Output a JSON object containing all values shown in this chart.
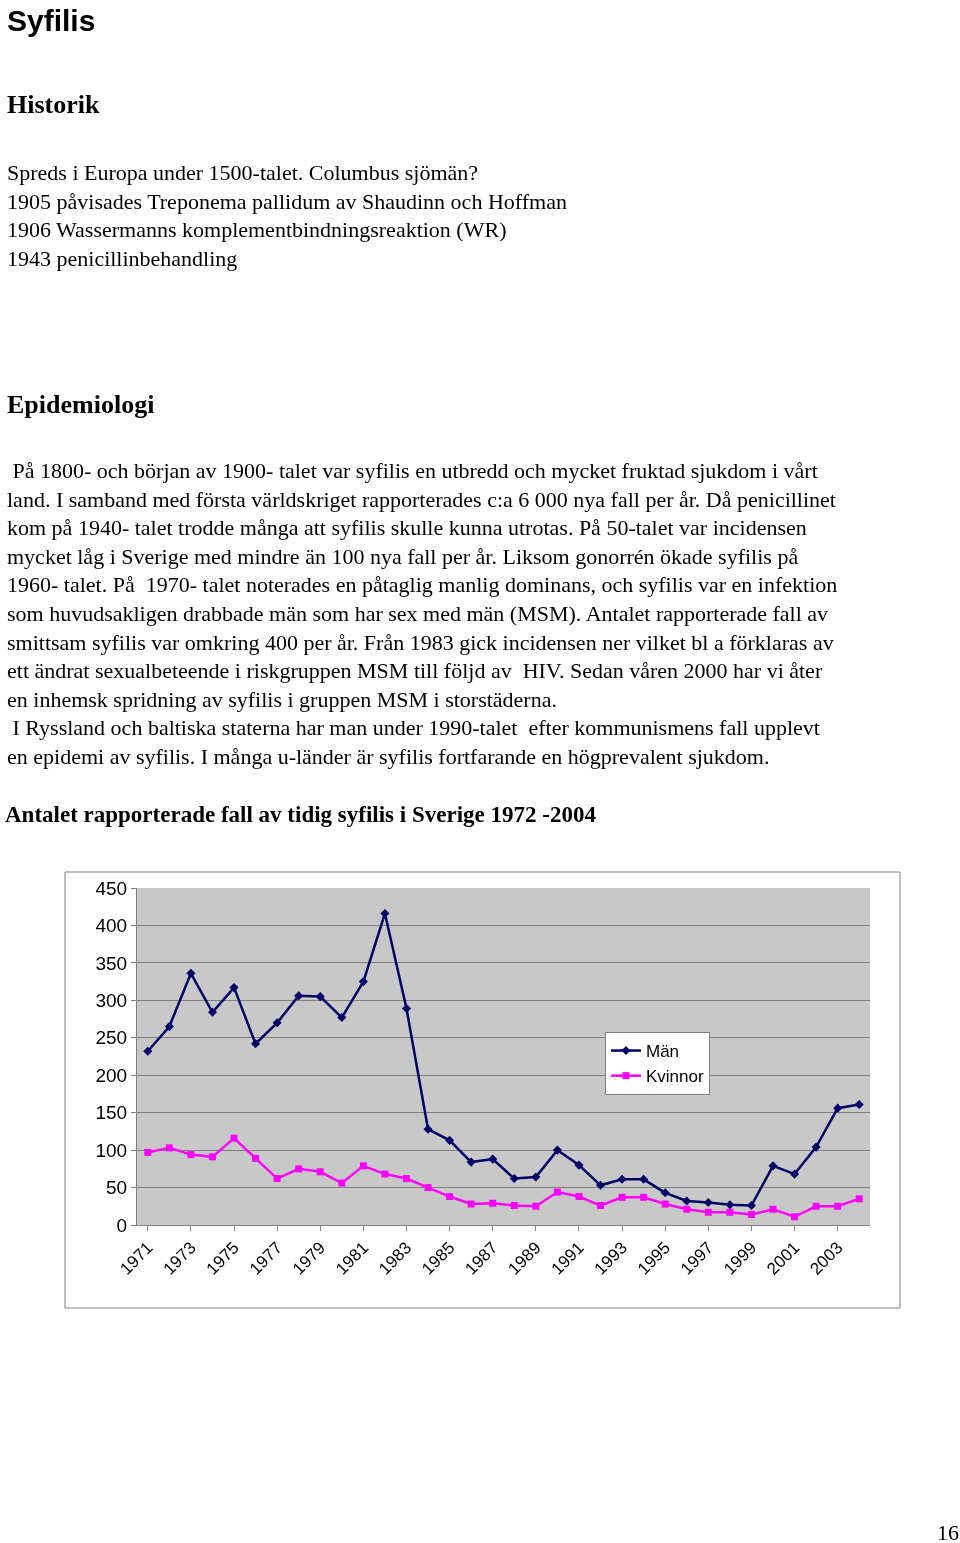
{
  "chart_data": {
    "type": "line",
    "title": "Antalet rapporterade fall av tidig syfilis i Sverige 1972 -2004",
    "annotations": [
      "Syfilis",
      "Historik",
      "Spreds i Europa under 1500-talet. Columbus sjömän?\n1905 påvisades Treponema pallidum av Shaudinn och Hoffman\n1906 Wassermanns komplementbindningsreaktion (WR)\n1943 penicillinbehandling",
      "Epidemiologi",
      " På 1800- och början av 1900- talet var syfilis en utbredd och mycket fruktad sjukdom i vårt\nland. I samband med första världskriget rapporterades c:a 6 000 nya fall per år. Då penicillinet\nkom på 1940- talet trodde många att syfilis skulle kunna utrotas. På 50-talet var incidensen\nmycket låg i Sverige med mindre än 100 nya fall per år. Liksom gonorrén ökade syfilis på\n1960- talet. På  1970- talet noterades en påtaglig manlig dominans, och syfilis var en infektion\nsom huvudsakligen drabbade män som har sex med män (MSM). Antalet rapporterade fall av\nsmittsam syfilis var omkring 400 per år. Från 1983 gick incidensen ner vilket bl a förklaras av\nett ändrat sexualbeteende i riskgruppen MSM till följd av  HIV. Sedan våren 2000 har vi åter\nen inhemsk spridning av syfilis i gruppen MSM i storstäderna.\n I Ryssland och baltiska staterna har man under 1990-talet  efter kommunismens fall upplevt\nen epidemi av syfilis. I många u-länder är syfilis fortfarande en högprevalent sjukdom.",
      "16"
    ],
    "categories": [
      "1971",
      null,
      "1973",
      null,
      "1975",
      null,
      "1977",
      null,
      "1979",
      null,
      "1981",
      null,
      "1983",
      null,
      "1985",
      null,
      "1987",
      null,
      "1989",
      null,
      "1991",
      null,
      "1993",
      null,
      "1995",
      null,
      "1997",
      null,
      "1999",
      null,
      "2001",
      null,
      "2003",
      null
    ],
    "series": [
      {
        "name": "Män",
        "color": "#000066",
        "marker": "diamond",
        "values": [
          232,
          265,
          336,
          284,
          317,
          242,
          270,
          306,
          305,
          277,
          325,
          416,
          289,
          128,
          113,
          84,
          88,
          62,
          64,
          100,
          80,
          53,
          61,
          61,
          43,
          32,
          30,
          27,
          26,
          79,
          68,
          104,
          156,
          161
        ]
      },
      {
        "name": "Kvinnor",
        "color": "#ff00ff",
        "marker": "square",
        "values": [
          97,
          103,
          94,
          91,
          116,
          89,
          62,
          75,
          71,
          56,
          79,
          68,
          62,
          50,
          38,
          28,
          29,
          26,
          25,
          44,
          38,
          26,
          37,
          37,
          28,
          21,
          17,
          17,
          14,
          21,
          11,
          25,
          25,
          35
        ]
      }
    ],
    "ylim": [
      0,
      450
    ],
    "yticks": [
      0,
      50,
      100,
      150,
      200,
      250,
      300,
      350,
      400,
      450
    ],
    "grid": "y",
    "legend": "right",
    "line_style": "solid"
  }
}
